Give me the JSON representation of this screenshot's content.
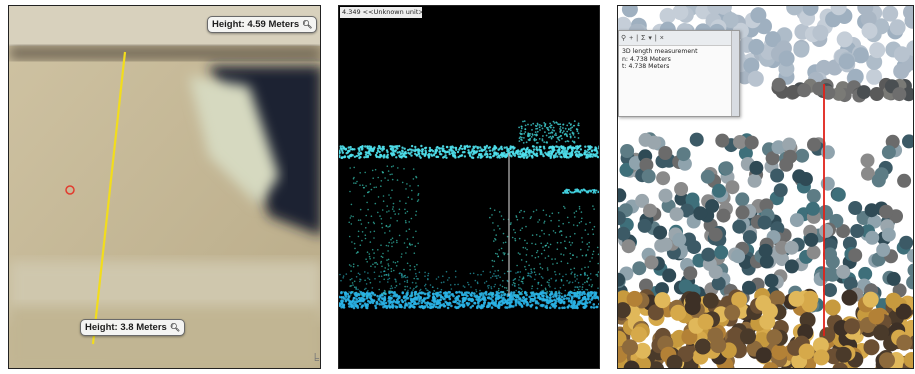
{
  "panel1": {
    "top_label": "Height: 4.59 Meters",
    "bottom_label": "Height: 3.8 Meters",
    "label_icon": "magnifier-icon",
    "line_color": "#f2dd1c",
    "corner_icon": "resize-grip-icon"
  },
  "panel2": {
    "title": "4.349 <<Unknown unit>>",
    "point_color": "#3fd6e6"
  },
  "panel3": {
    "toolbar_icons": [
      "path-icon",
      "add-icon",
      "sum-icon",
      "dropdown-icon",
      "close-icon"
    ],
    "lines": [
      "3D length measurement",
      "n: 4.738 Meters",
      "t: 4.738 Meters"
    ],
    "line_color": "#e0221a"
  }
}
